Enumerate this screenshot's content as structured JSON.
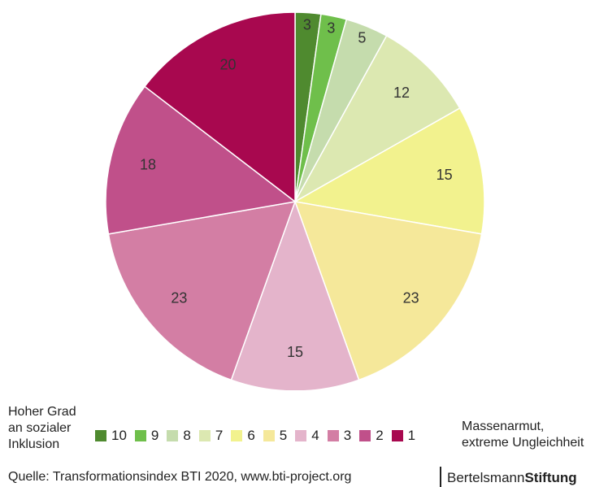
{
  "chart_data": {
    "type": "pie",
    "categories": [
      "10",
      "9",
      "8",
      "7",
      "6",
      "5",
      "4",
      "3",
      "2",
      "1"
    ],
    "values": [
      3,
      3,
      5,
      12,
      15,
      23,
      15,
      23,
      18,
      20
    ],
    "colors": [
      "#4f8a2f",
      "#6fbf4b",
      "#c5dcad",
      "#dce8b1",
      "#f2f28e",
      "#f5e89a",
      "#e4b4cb",
      "#d37ea4",
      "#c0508a",
      "#a8084f"
    ],
    "legend_left_label": [
      "Hoher Grad",
      "an sozialer",
      "Inklusion"
    ],
    "legend_right_label": [
      "Massenarmut,",
      "extreme Ungleichheit"
    ],
    "legend_placement": "bottom"
  },
  "source": "Quelle: Transformationsindex BTI 2020, www.bti-project.org",
  "brand": {
    "normal": "Bertelsmann",
    "bold": "Stiftung"
  }
}
